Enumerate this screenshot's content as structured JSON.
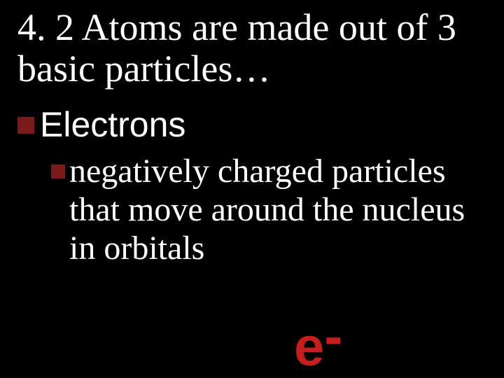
{
  "slide": {
    "title": "4. 2 Atoms are made out of 3 basic particles…",
    "bullet1": {
      "label": "Electrons",
      "bullet_color": "#7a1a1a"
    },
    "bullet2": {
      "text": "negatively charged particles that move around the nucleus in orbitals",
      "bullet_color": "#7a1a1a"
    },
    "symbol": {
      "base": "e",
      "superscript": "-",
      "color": "#c41e1e"
    },
    "colors": {
      "background": "#000000",
      "text": "#ffffff",
      "accent": "#c41e1e",
      "bullet": "#7a1a1a"
    },
    "typography": {
      "title_fontsize": 54,
      "title_family": "Times New Roman",
      "bullet1_fontsize": 50,
      "bullet1_family": "Arial",
      "bullet2_fontsize": 48,
      "bullet2_family": "Times New Roman",
      "symbol_fontsize": 78,
      "symbol_family": "Arial",
      "symbol_weight": "bold"
    }
  }
}
